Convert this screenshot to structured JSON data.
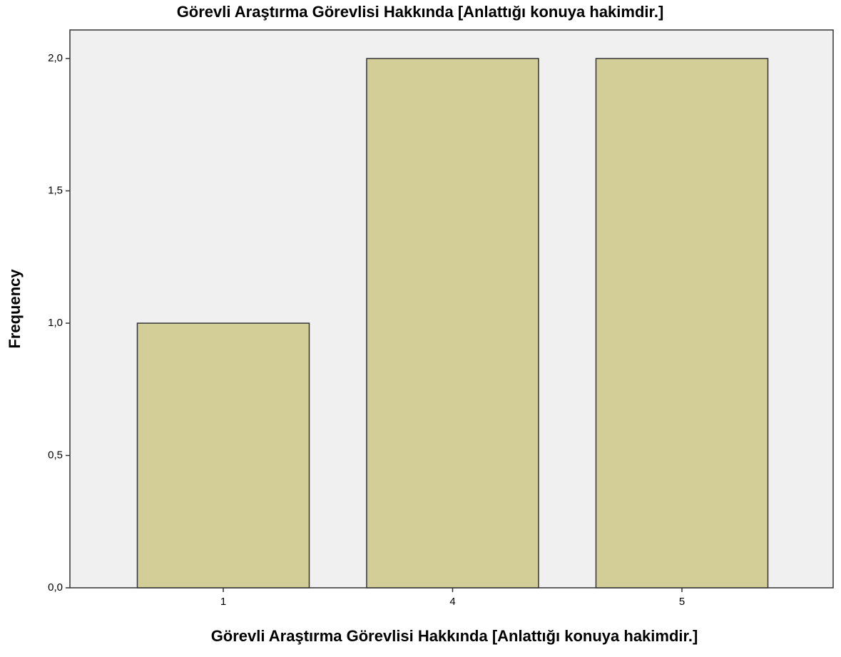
{
  "chart_data": {
    "type": "bar",
    "title": "Görevli Araştırma Görevlisi Hakkında [Anlattığı konuya hakimdir.]",
    "x_label": "Görevli Araştırma Görevlisi Hakkında [Anlattığı konuya hakimdir.]",
    "y_label": "Frequency",
    "categories": [
      "1",
      "4",
      "5"
    ],
    "values": [
      1,
      2,
      2
    ],
    "color": "#d3ce97",
    "ylim": [
      0,
      2.108
    ],
    "yticks": [
      {
        "value": 0,
        "label": "0,0"
      },
      {
        "value": 0.5,
        "label": "0,5"
      },
      {
        "value": 1,
        "label": "1,0"
      },
      {
        "value": 1.5,
        "label": "1,5"
      },
      {
        "value": 2,
        "label": "2,0"
      }
    ],
    "grid": false
  }
}
